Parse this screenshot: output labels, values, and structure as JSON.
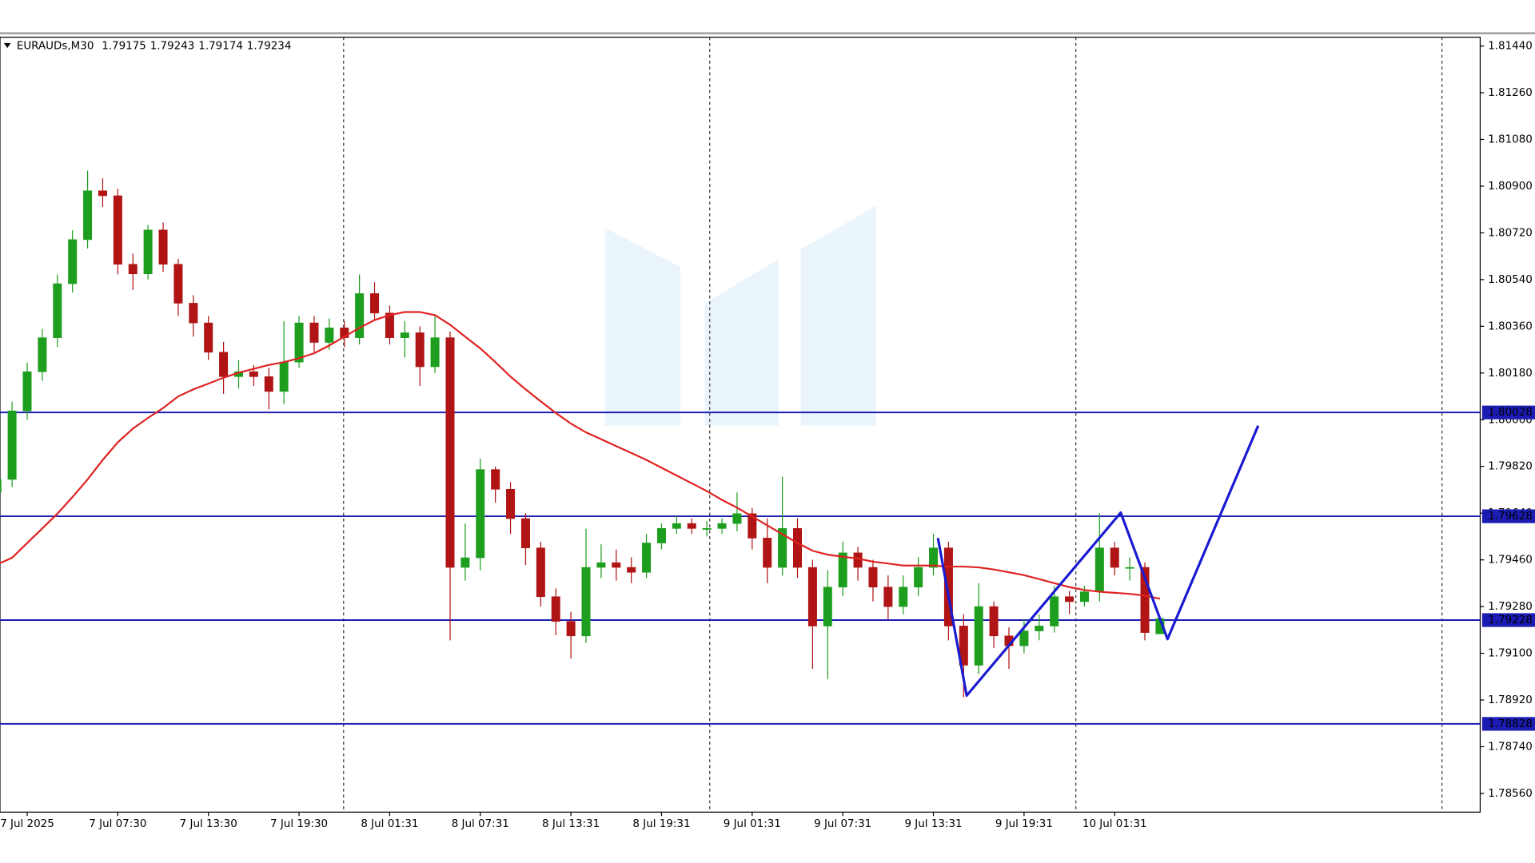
{
  "header": {
    "symbol": "EURAUDs,M30",
    "ohlc": [
      "1.79175",
      "1.79243",
      "1.79174",
      "1.79234"
    ]
  },
  "chart_data": {
    "type": "candlestick",
    "categories": [
      null,
      null,
      "7 Jul 2025",
      null,
      null,
      null,
      null,
      null,
      "7 Jul 07:30",
      null,
      null,
      null,
      null,
      null,
      "7 Jul 13:30",
      null,
      null,
      null,
      null,
      null,
      "7 Jul 19:30",
      null,
      null,
      null,
      null,
      null,
      "8 Jul 01:31",
      null,
      null,
      null,
      null,
      null,
      "8 Jul 07:31",
      null,
      null,
      null,
      null,
      null,
      "8 Jul 13:31",
      null,
      null,
      null,
      null,
      null,
      "8 Jul 19:31",
      null,
      null,
      null,
      null,
      null,
      "9 Jul 01:31",
      null,
      null,
      null,
      null,
      null,
      "9 Jul 07:31",
      null,
      null,
      null,
      null,
      null,
      "9 Jul 13:31",
      null,
      null,
      null,
      null,
      null,
      "9 Jul 19:31",
      null,
      null,
      null,
      null,
      null,
      "10 Jul 01:31",
      null,
      null,
      null
    ],
    "open": [
      1.7972,
      1.7977,
      1.80034,
      1.80185,
      1.80316,
      1.80524,
      1.80694,
      1.80882,
      1.80863,
      1.80599,
      1.80562,
      1.80731,
      1.80599,
      1.80449,
      1.80373,
      1.8026,
      1.80166,
      1.80185,
      1.80166,
      1.80109,
      1.80222,
      1.80373,
      1.80298,
      1.80354,
      1.80316,
      1.80486,
      1.80411,
      1.80316,
      1.80335,
      1.80204,
      1.80316,
      1.79431,
      1.79468,
      1.79808,
      1.79732,
      1.79619,
      1.79506,
      1.79318,
      1.79223,
      1.79167,
      1.79431,
      1.79449,
      1.79431,
      1.79412,
      1.79525,
      1.79581,
      1.796,
      1.79581,
      1.79581,
      1.796,
      1.79638,
      1.79544,
      1.79431,
      1.79581,
      1.79431,
      1.79205,
      1.79355,
      1.79487,
      1.79431,
      1.79355,
      1.7928,
      1.79355,
      1.79431,
      1.79506,
      1.79205,
      1.79054,
      1.7928,
      1.79167,
      1.79129,
      1.79186,
      1.79205,
      1.79318,
      1.79299,
      1.79337,
      1.79506,
      1.79431,
      1.79431,
      1.79175
    ],
    "high": [
      1.7981,
      1.8007,
      1.8022,
      1.8035,
      1.8056,
      1.8073,
      1.8096,
      1.8093,
      1.8089,
      1.8064,
      1.8075,
      1.8076,
      1.8062,
      1.8048,
      1.804,
      1.803,
      1.8023,
      1.8021,
      1.802,
      1.8038,
      1.804,
      1.804,
      1.8039,
      1.8038,
      1.8056,
      1.8053,
      1.8044,
      1.8038,
      1.8036,
      1.804,
      1.8034,
      1.796,
      1.7985,
      1.7982,
      1.7976,
      1.7964,
      1.7953,
      1.7935,
      1.7926,
      1.7958,
      1.7952,
      1.795,
      1.7947,
      1.7956,
      1.796,
      1.7963,
      1.7962,
      1.7961,
      1.7962,
      1.7972,
      1.7966,
      1.7962,
      1.7978,
      1.7962,
      1.7946,
      1.7942,
      1.7953,
      1.7951,
      1.7946,
      1.794,
      1.794,
      1.7947,
      1.7956,
      1.7953,
      1.7925,
      1.7937,
      1.793,
      1.792,
      1.7923,
      1.7925,
      1.7936,
      1.7934,
      1.7936,
      1.7964,
      1.7953,
      1.7947,
      1.7945,
      1.79243
    ],
    "low": [
      1.7968,
      1.7974,
      1.8,
      1.8015,
      1.8028,
      1.8049,
      1.8066,
      1.8082,
      1.8056,
      1.805,
      1.8054,
      1.8057,
      1.804,
      1.8032,
      1.8023,
      1.801,
      1.8012,
      1.8013,
      1.8004,
      1.8006,
      1.802,
      1.8026,
      1.8027,
      1.8028,
      1.8029,
      1.8038,
      1.8029,
      1.8024,
      1.8013,
      1.8018,
      1.7915,
      1.7938,
      1.7942,
      1.7968,
      1.7956,
      1.7944,
      1.7928,
      1.7917,
      1.7908,
      1.7914,
      1.7939,
      1.7938,
      1.7937,
      1.7939,
      1.795,
      1.7956,
      1.7956,
      1.7955,
      1.7956,
      1.7957,
      1.795,
      1.7937,
      1.794,
      1.7939,
      1.7904,
      1.79,
      1.7932,
      1.7938,
      1.793,
      1.7923,
      1.7925,
      1.7932,
      1.794,
      1.7915,
      1.7893,
      1.7902,
      1.7912,
      1.7904,
      1.791,
      1.7915,
      1.7918,
      1.7925,
      1.7928,
      1.793,
      1.794,
      1.7938,
      1.7915,
      1.79174
    ],
    "close": [
      1.7977,
      1.80034,
      1.80185,
      1.80316,
      1.80524,
      1.80694,
      1.80882,
      1.80863,
      1.80599,
      1.80562,
      1.80731,
      1.80599,
      1.80449,
      1.80373,
      1.8026,
      1.80166,
      1.80185,
      1.80166,
      1.80109,
      1.80222,
      1.80373,
      1.80298,
      1.80354,
      1.80316,
      1.80486,
      1.80411,
      1.80316,
      1.80335,
      1.80204,
      1.80316,
      1.79431,
      1.79468,
      1.79808,
      1.79732,
      1.79619,
      1.79506,
      1.79318,
      1.79223,
      1.79167,
      1.79431,
      1.79449,
      1.79431,
      1.79412,
      1.79525,
      1.79581,
      1.796,
      1.79581,
      1.79581,
      1.796,
      1.79638,
      1.79544,
      1.79431,
      1.79581,
      1.79431,
      1.79205,
      1.79355,
      1.79487,
      1.79431,
      1.79355,
      1.7928,
      1.79355,
      1.79431,
      1.79506,
      1.79205,
      1.79054,
      1.7928,
      1.79167,
      1.79129,
      1.79186,
      1.79205,
      1.79318,
      1.79299,
      1.79337,
      1.79506,
      1.79431,
      1.79431,
      1.7918,
      1.79234
    ],
    "up_color": "#1e9e1e",
    "down_color": "#b01414",
    "moving_average": {
      "color": "#e02222",
      "values": [
        1.79442,
        1.79468,
        1.79525,
        1.79581,
        1.79638,
        1.79702,
        1.7977,
        1.79845,
        1.79913,
        1.79966,
        1.80007,
        1.80045,
        1.8009,
        1.80117,
        1.80139,
        1.80162,
        1.80181,
        1.80196,
        1.80211,
        1.80222,
        1.80237,
        1.80256,
        1.80286,
        1.8032,
        1.80354,
        1.80384,
        1.80403,
        1.80415,
        1.80415,
        1.80403,
        1.80366,
        1.8032,
        1.80275,
        1.80222,
        1.80166,
        1.80117,
        1.80071,
        1.80026,
        1.79985,
        1.79951,
        1.79925,
        1.79898,
        1.79872,
        1.79845,
        1.79815,
        1.79785,
        1.79755,
        1.79725,
        1.79691,
        1.79661,
        1.79627,
        1.79593,
        1.79559,
        1.79525,
        1.79495,
        1.7948,
        1.79472,
        1.79465,
        1.79453,
        1.79446,
        1.79438,
        1.79438,
        1.79438,
        1.79434,
        1.79434,
        1.79431,
        1.79423,
        1.79412,
        1.79401,
        1.79386,
        1.7937,
        1.79355,
        1.79344,
        1.79337,
        1.79333,
        1.79329,
        1.79322,
        1.7931
      ]
    },
    "projection": {
      "color": "#1a1ad0",
      "x": [
        62.3,
        64.2,
        74.4,
        77.5,
        83.5
      ],
      "values": [
        1.79544,
        1.78937,
        1.79642,
        1.79155,
        1.79977
      ]
    },
    "levels_color": "#1c1cb4",
    "levels": [
      {
        "value": 1.80028,
        "label": "1.80028"
      },
      {
        "value": 1.79628,
        "label": "1.79628"
      },
      {
        "value": 1.79228,
        "label": "1.79228"
      },
      {
        "value": 1.78828,
        "label": "1.78828"
      }
    ],
    "xlim": [
      0.2,
      98.2
    ],
    "ylim": [
      1.78488,
      1.81474
    ],
    "yticks": [
      {
        "value": 1.8144,
        "label": "1.81440"
      },
      {
        "value": 1.8126,
        "label": "1.81260"
      },
      {
        "value": 1.8108,
        "label": "1.81080"
      },
      {
        "value": 1.809,
        "label": "1.80900"
      },
      {
        "value": 1.8072,
        "label": "1.80720"
      },
      {
        "value": 1.8054,
        "label": "1.80540"
      },
      {
        "value": 1.8036,
        "label": "1.80360"
      },
      {
        "value": 1.8018,
        "label": "1.80180"
      },
      {
        "value": 1.8,
        "label": "1.80000"
      },
      {
        "value": 1.7982,
        "label": "1.79820"
      },
      {
        "value": 1.7964,
        "label": "1.79640"
      },
      {
        "value": 1.7946,
        "label": "1.79460"
      },
      {
        "value": 1.7928,
        "label": "1.79280"
      },
      {
        "value": 1.791,
        "label": "1.79100"
      },
      {
        "value": 1.7892,
        "label": "1.78920"
      },
      {
        "value": 1.7874,
        "label": "1.78740"
      },
      {
        "value": 1.7856,
        "label": "1.78560"
      }
    ]
  }
}
